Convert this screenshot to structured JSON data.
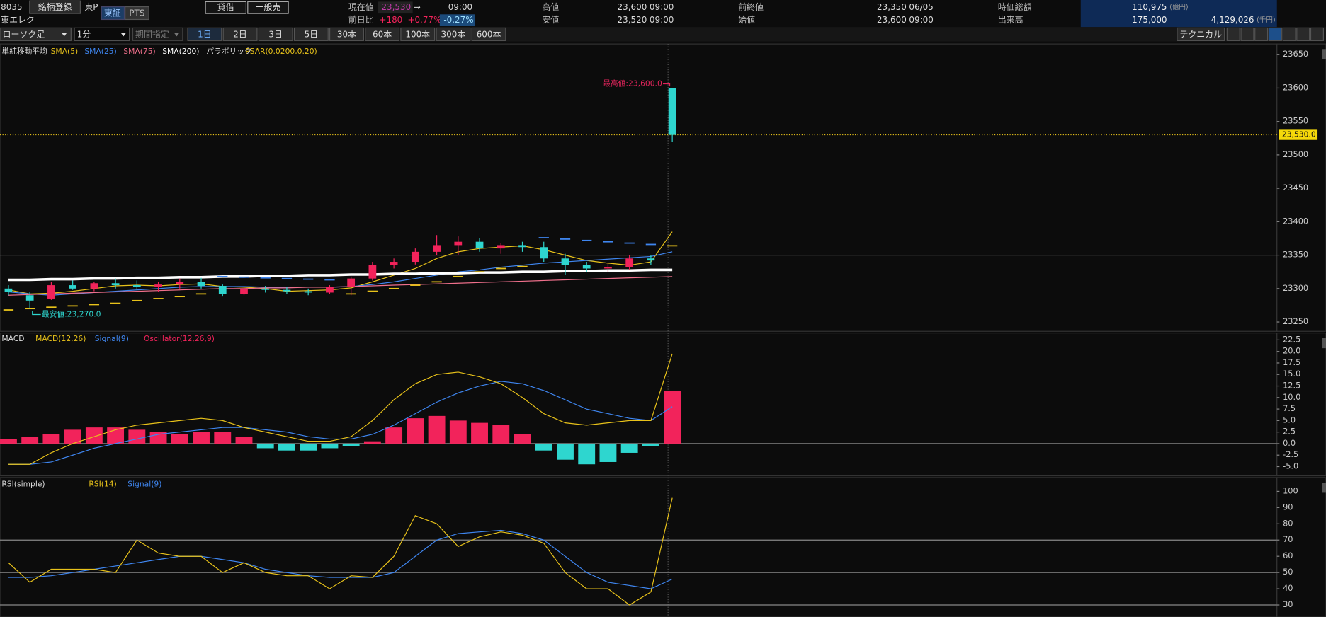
{
  "header": {
    "code": "8035",
    "register": "銘柄登録",
    "market": "東P",
    "exchange_tse": "東証",
    "exchange_pts": "PTS",
    "name": "東エレク",
    "lending": "貸借",
    "short_sell": "一般売",
    "current_label": "現在値",
    "current": "23,530",
    "arrow": "→",
    "current_time": "09:00",
    "change_label": "前日比",
    "change": "+180",
    "change_pct": "+0.77%",
    "change_pct2": "-0.27%",
    "high_label": "高値",
    "high": "23,600",
    "high_time": "09:00",
    "low_label": "安値",
    "low": "23,520",
    "low_time": "09:00",
    "prev_close_label": "前終値",
    "prev_close": "23,350",
    "prev_close_date": "06/05",
    "open_label": "始値",
    "open": "23,600",
    "open_time": "09:00",
    "mcap_label": "時価総額",
    "mcap": "110,975",
    "mcap_unit": "(億円)",
    "volume_label": "出来高",
    "volume": "175,000",
    "turnover": "4,129,026",
    "turnover_unit": "(千円)"
  },
  "toolbar": {
    "chart_type": "ローソク足",
    "interval": "1分",
    "period": "期間指定",
    "ranges": [
      "1日",
      "2日",
      "3日",
      "5日",
      "30本",
      "60本",
      "100本",
      "300本",
      "600本"
    ],
    "technical": "テクニカル"
  },
  "chart_data": [
    {
      "type": "candlestick",
      "legend_title": "単純移動平均",
      "up_color": "#f2235b",
      "down_color": "#2ed6cf",
      "open": [
        23300,
        23290,
        23285,
        23305,
        23300,
        23308,
        23305,
        23302,
        23306,
        23310,
        23304,
        23292,
        23300,
        23298,
        23296,
        23294,
        23302,
        23315,
        23335,
        23340,
        23355,
        23365,
        23370,
        23360,
        23365,
        23362,
        23345,
        23335,
        23330,
        23332,
        23345,
        23600
      ],
      "high": [
        23305,
        23295,
        23310,
        23312,
        23310,
        23315,
        23312,
        23310,
        23315,
        23316,
        23306,
        23302,
        23304,
        23302,
        23300,
        23305,
        23318,
        23340,
        23345,
        23360,
        23380,
        23378,
        23375,
        23368,
        23370,
        23370,
        23352,
        23340,
        23338,
        23350,
        23350,
        23600
      ],
      "low": [
        23290,
        23270,
        23283,
        23298,
        23296,
        23300,
        23298,
        23295,
        23300,
        23300,
        23288,
        23290,
        23294,
        23292,
        23290,
        23292,
        23290,
        23312,
        23330,
        23336,
        23350,
        23350,
        23355,
        23352,
        23355,
        23340,
        23320,
        23325,
        23325,
        23328,
        23335,
        23520
      ],
      "close": [
        23295,
        23282,
        23305,
        23300,
        23308,
        23305,
        23302,
        23306,
        23310,
        23304,
        23292,
        23300,
        23298,
        23296,
        23294,
        23302,
        23315,
        23335,
        23340,
        23355,
        23365,
        23370,
        23360,
        23365,
        23362,
        23345,
        23335,
        23330,
        23332,
        23345,
        23342,
        23530
      ],
      "series": [
        {
          "name": "SMA(5)",
          "color": "#e8c21a",
          "values": [
            23298,
            23292,
            23293,
            23296,
            23300,
            23304,
            23305,
            23304,
            23306,
            23307,
            23303,
            23302,
            23300,
            23296,
            23297,
            23298,
            23301,
            23310,
            23320,
            23330,
            23345,
            23355,
            23360,
            23362,
            23364,
            23358,
            23350,
            23342,
            23338,
            23335,
            23340,
            23385
          ]
        },
        {
          "name": "SMA(25)",
          "color": "#3f86f0",
          "values": [
            23295,
            23292,
            23290,
            23292,
            23294,
            23296,
            23298,
            23300,
            23302,
            23303,
            23303,
            23303,
            23302,
            23302,
            23302,
            23302,
            23303,
            23306,
            23310,
            23315,
            23320,
            23325,
            23328,
            23332,
            23335,
            23338,
            23340,
            23342,
            23344,
            23346,
            23348,
            23355
          ]
        },
        {
          "name": "SMA(75)",
          "color": "#f0708c",
          "values": [
            23290,
            23291,
            23292,
            23293,
            23294,
            23295,
            23296,
            23297,
            23298,
            23299,
            23300,
            23300,
            23301,
            23301,
            23302,
            23302,
            23303,
            23304,
            23305,
            23306,
            23307,
            23308,
            23309,
            23310,
            23311,
            23312,
            23313,
            23314,
            23315,
            23316,
            23317,
            23318
          ]
        },
        {
          "name": "SMA(200)",
          "color": "#ffffff",
          "values": [
            23313,
            23313,
            23314,
            23314,
            23315,
            23315,
            23316,
            23316,
            23317,
            23317,
            23318,
            23318,
            23319,
            23319,
            23320,
            23320,
            23321,
            23321,
            23322,
            23322,
            23323,
            23323,
            23324,
            23324,
            23325,
            23325,
            23326,
            23326,
            23327,
            23327,
            23328,
            23328
          ]
        }
      ],
      "psar": {
        "name": "PSAR(0.0200,0.20)",
        "legend_title": "パラボリック",
        "colors": {
          "above": "#3f86f0",
          "below": "#e8c21a"
        },
        "values": [
          23268,
          23270,
          23272,
          23274,
          23276,
          23278,
          23282,
          23285,
          23288,
          23292,
          23318,
          23317,
          23316,
          23315,
          23314,
          23313,
          23292,
          23296,
          23300,
          23305,
          23310,
          23318,
          23325,
          23330,
          23333,
          23376,
          23374,
          23372,
          23370,
          23368,
          23366,
          23364
        ]
      },
      "ylim": [
        23236,
        23666
      ],
      "yticks": [
        23250,
        23300,
        23350,
        23400,
        23450,
        23500,
        23550,
        23600,
        23650
      ],
      "prev_close_line": 23350,
      "last_price": {
        "value": 23530,
        "label": "23,530.0"
      },
      "high_note": "最高値:23,600.0",
      "low_note": "最安値:23,270.0"
    },
    {
      "type": "macd",
      "legend_title": "MACD",
      "series": [
        {
          "name": "MACD(12,26)",
          "color": "#e8c21a",
          "values": [
            -4.5,
            -4.5,
            -2,
            0,
            1.5,
            3,
            4,
            4.5,
            5,
            5.5,
            5,
            3.5,
            2.5,
            1.5,
            0.5,
            0.5,
            1.5,
            5,
            9.5,
            13,
            15,
            15.5,
            14.5,
            13,
            10,
            6.5,
            4.5,
            4,
            4.5,
            5,
            5,
            19.5
          ]
        },
        {
          "name": "Signal(9)",
          "color": "#3f86f0",
          "values": [
            -4.5,
            -4.5,
            -4,
            -2.5,
            -1,
            0,
            1,
            2,
            2.5,
            3,
            3.5,
            3.5,
            3,
            2.5,
            1.5,
            1,
            1,
            2,
            4,
            6.5,
            9,
            11,
            12.5,
            13.5,
            13,
            11.5,
            9.5,
            7.5,
            6.5,
            5.5,
            5,
            8
          ]
        },
        {
          "name": "Oscillator(12,26,9)",
          "color": "#f2235b",
          "negative_color": "#2ed6cf",
          "values": [
            1,
            1.5,
            2,
            3,
            3.5,
            3.5,
            3,
            2.5,
            2,
            2.5,
            2.5,
            1.5,
            -1,
            -1.5,
            -1.5,
            -1,
            -0.5,
            0.5,
            3.5,
            5.5,
            6,
            5,
            4.5,
            4,
            2,
            -1.5,
            -3.5,
            -4.5,
            -4,
            -2,
            -0.5,
            11.5
          ]
        }
      ],
      "ylim": [
        -7,
        24
      ],
      "yticks": [
        {
          "value": 22.5,
          "label": "22.5"
        },
        {
          "value": 20,
          "label": "20.0"
        },
        {
          "value": 17.5,
          "label": "17.5"
        },
        {
          "value": 15,
          "label": "15.0"
        },
        {
          "value": 12.5,
          "label": "12.5"
        },
        {
          "value": 10,
          "label": "10.0"
        },
        {
          "value": 7.5,
          "label": "7.5"
        },
        {
          "value": 5,
          "label": "5.0"
        },
        {
          "value": 2.5,
          "label": "2.5"
        },
        {
          "value": 0,
          "label": "0.0"
        },
        {
          "value": -2.5,
          "label": "-2.5"
        },
        {
          "value": -5,
          "label": "-5.0"
        }
      ]
    },
    {
      "type": "rsi",
      "legend_title": "RSI(simple)",
      "series": [
        {
          "name": "RSI(14)",
          "color": "#e8c21a",
          "values": [
            56,
            44,
            52,
            52,
            52,
            50,
            70,
            62,
            60,
            60,
            50,
            56,
            50,
            48,
            48,
            40,
            48,
            47,
            60,
            85,
            80,
            66,
            72,
            75,
            73,
            68,
            50,
            40,
            40,
            30,
            38,
            96
          ]
        },
        {
          "name": "Signal(9)",
          "color": "#3f86f0",
          "values": [
            47,
            47,
            48,
            50,
            52,
            54,
            56,
            58,
            60,
            60,
            58,
            56,
            52,
            50,
            48,
            47,
            47,
            47,
            50,
            60,
            70,
            74,
            75,
            76,
            74,
            70,
            60,
            50,
            44,
            42,
            40,
            46
          ]
        }
      ],
      "ylim": [
        22.6,
        108.5
      ],
      "yticks": [
        30,
        40,
        50,
        60,
        70,
        80,
        90,
        100
      ],
      "hlines": [
        70,
        50,
        30
      ]
    }
  ]
}
